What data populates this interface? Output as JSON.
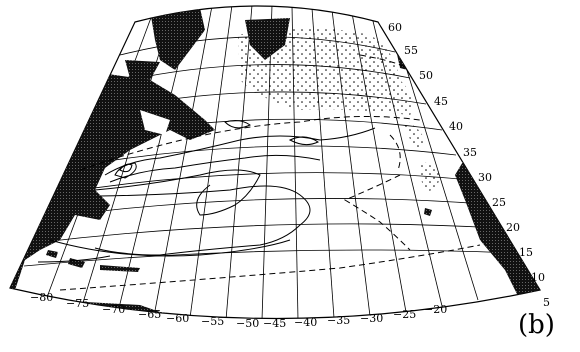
{
  "figure": {
    "panel_label": "(b)"
  },
  "map": {
    "grid_lines": "black",
    "land_color": "#111111",
    "ocean_color": "#ffffff",
    "latitude_labels": [
      "60",
      "55",
      "50",
      "45",
      "40",
      "35",
      "30",
      "25",
      "20",
      "15",
      "10",
      "5"
    ],
    "longitude_labels": [
      "−80",
      "−75",
      "−70",
      "−65",
      "−60",
      "−55",
      "−50",
      "−45",
      "−40",
      "−35",
      "−30",
      "−25",
      "−20"
    ]
  }
}
